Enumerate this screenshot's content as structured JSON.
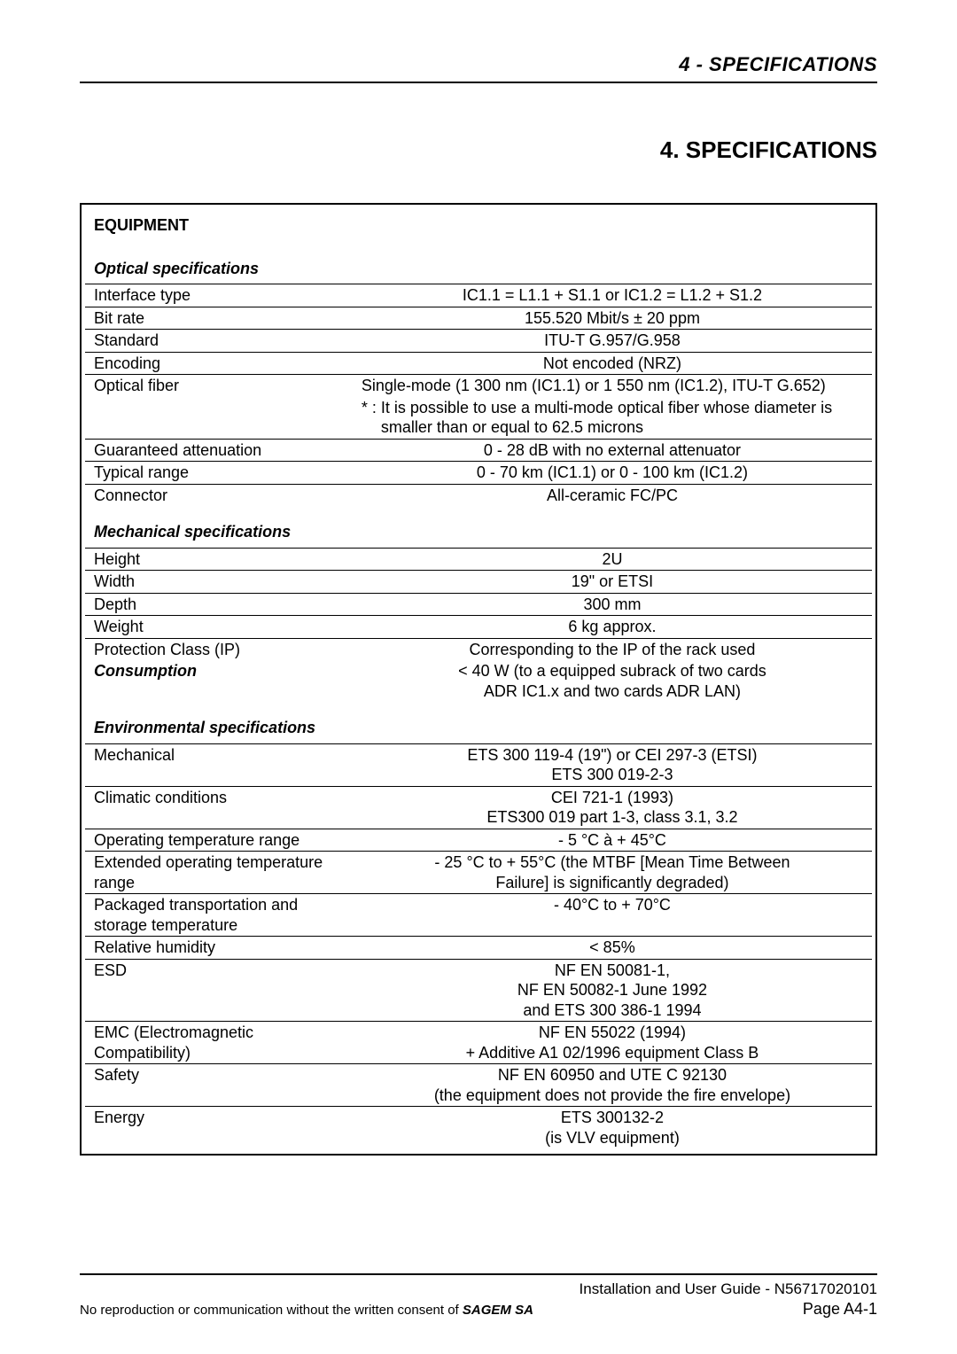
{
  "header": {
    "running_head": "4 - SPECIFICATIONS",
    "section_title": "4.  SPECIFICATIONS"
  },
  "table": {
    "title": "EQUIPMENT",
    "groups": [
      {
        "heading": "Optical specifications",
        "rows": [
          {
            "label": "Interface type",
            "value": "IC1.1 = L1.1 + S1.1 or IC1.2 = L1.2 + S1.2",
            "align": "center"
          },
          {
            "label": "Bit rate",
            "value": "155.520 Mbit/s ± 20 ppm",
            "align": "center"
          },
          {
            "label": "Standard",
            "value": "ITU-T G.957/G.958",
            "align": "center"
          },
          {
            "label": "Encoding",
            "value": "Not encoded (NRZ)",
            "align": "center"
          },
          {
            "label": "Optical fiber",
            "value": "Single-mode (1 300 nm (IC1.1) or 1 550 nm (IC1.2), ITU-T G.652)",
            "align": "left",
            "note": "It is possible to use a multi-mode optical fiber whose diameter is smaller than or equal to 62.5 microns"
          },
          {
            "label": "Guaranteed attenuation",
            "value": "0 - 28 dB with no external attenuator",
            "align": "center"
          },
          {
            "label": "Typical range",
            "value": "0 - 70 km (IC1.1) or 0 - 100 km (IC1.2)",
            "align": "center"
          },
          {
            "label": "Connector",
            "value": "All-ceramic FC/PC",
            "align": "center"
          }
        ]
      },
      {
        "heading": "Mechanical specifications",
        "rows": [
          {
            "label": "Height",
            "value": "2U",
            "align": "center"
          },
          {
            "label": "Width",
            "value": "19\" or ETSI",
            "align": "center"
          },
          {
            "label": "Depth",
            "value": "300 mm",
            "align": "center"
          },
          {
            "label": "Weight",
            "value": "6 kg approx.",
            "align": "center"
          },
          {
            "label": "Protection Class (IP)",
            "value": "Corresponding to the IP of the rack used",
            "align": "center"
          }
        ]
      },
      {
        "consumption_label": "Consumption",
        "consumption_value_l1": "< 40 W (to a equipped subrack of two cards",
        "consumption_value_l2": "ADR IC1.x and two cards ADR LAN)"
      },
      {
        "heading": "Environmental specifications",
        "rows": [
          {
            "label": "Mechanical",
            "value_lines": [
              "ETS 300 119-4 (19\") or CEI 297-3 (ETSI)",
              "ETS 300 019-2-3"
            ],
            "align": "center"
          },
          {
            "label": "Climatic conditions",
            "value_lines": [
              "CEI 721-1 (1993)",
              "ETS300 019 part 1-3, class 3.1, 3.2"
            ],
            "align": "center"
          },
          {
            "label": "Operating temperature range",
            "value": "- 5 °C à + 45°C",
            "align": "center"
          },
          {
            "label": "Extended operating temperature range",
            "value_lines": [
              "- 25 °C to + 55°C (the MTBF [Mean Time Between",
              "Failure] is significantly degraded)"
            ],
            "align": "center"
          },
          {
            "label": "Packaged transportation and storage temperature",
            "value": "- 40°C to + 70°C",
            "align": "center"
          },
          {
            "label": "Relative humidity",
            "value": "< 85%",
            "align": "center"
          },
          {
            "label": "ESD",
            "value_lines": [
              "NF EN 50081-1,",
              "NF EN 50082-1 June 1992",
              "and ETS 300 386-1 1994"
            ],
            "align": "center"
          },
          {
            "label": "EMC (Electromagnetic Compatibility)",
            "value_lines": [
              "NF EN 55022 (1994)",
              "+ Additive A1  02/1996 equipment Class B"
            ],
            "align": "center"
          },
          {
            "label": "Safety",
            "value_lines": [
              "NF EN 60950 and UTE C 92130",
              "(the equipment does not provide the fire envelope)"
            ],
            "align": "center"
          },
          {
            "label": "Energy",
            "value_lines": [
              "ETS 300132-2",
              "(is VLV equipment)"
            ],
            "align": "center"
          }
        ]
      }
    ]
  },
  "footer": {
    "line1": "Installation and User Guide - N56717020101",
    "line2_prefix": "No reproduction or communication without the written consent of ",
    "line2_brand": "SAGEM SA",
    "page": "Page A4-1"
  }
}
